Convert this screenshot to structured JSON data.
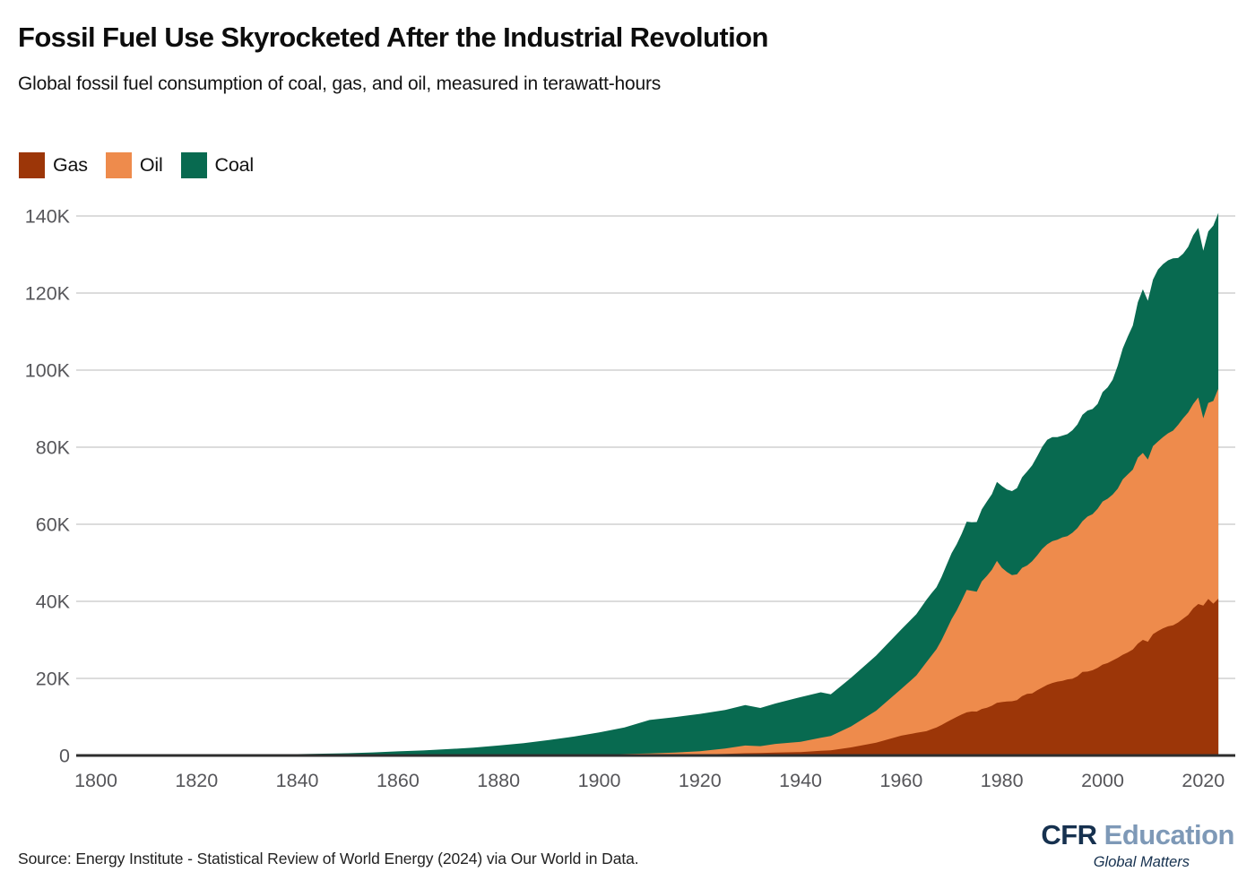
{
  "header": {
    "title": "Fossil Fuel Use Skyrocketed After the Industrial Revolution",
    "subtitle": "Global fossil fuel consumption of coal, gas, and oil, measured in terawatt-hours"
  },
  "footer": {
    "source": "Source: Energy Institute - Statistical Review of World Energy (2024) via Our World in Data.",
    "logo": {
      "cfr": "CFR",
      "education": "Education",
      "tagline": "Global Matters"
    }
  },
  "chart_data": {
    "type": "area",
    "stacked": true,
    "unit": "terawatt-hours",
    "title": "Fossil Fuel Use Skyrocketed After the Industrial Revolution",
    "subtitle": "Global fossil fuel consumption of coal, gas, and oil, measured in terawatt-hours",
    "xlabel": "",
    "ylabel": "",
    "x_range": [
      1800,
      2023
    ],
    "ylim": [
      0,
      140000
    ],
    "grid": true,
    "legend_position": "top-left",
    "series": [
      {
        "name": "Gas",
        "color": "#9c3608"
      },
      {
        "name": "Oil",
        "color": "#ee8b4c"
      },
      {
        "name": "Coal",
        "color": "#086a50"
      }
    ],
    "stack_order_bottom_to_top": [
      "Gas",
      "Oil",
      "Coal"
    ],
    "x_ticks": [
      1800,
      1820,
      1840,
      1860,
      1880,
      1900,
      1920,
      1940,
      1960,
      1980,
      2000,
      2020
    ],
    "y_ticks": [
      {
        "v": 0,
        "label": "0"
      },
      {
        "v": 20000,
        "label": "20K"
      },
      {
        "v": 40000,
        "label": "40K"
      },
      {
        "v": 60000,
        "label": "60K"
      },
      {
        "v": 80000,
        "label": "80K"
      },
      {
        "v": 100000,
        "label": "100K"
      },
      {
        "v": 120000,
        "label": "120K"
      },
      {
        "v": 140000,
        "label": "140K"
      }
    ],
    "points_format": [
      "year",
      "gas_twh",
      "oil_twh",
      "coal_twh"
    ],
    "points": [
      [
        1800,
        0,
        0,
        100
      ],
      [
        1810,
        0,
        0,
        130
      ],
      [
        1820,
        0,
        0,
        160
      ],
      [
        1830,
        0,
        0,
        260
      ],
      [
        1840,
        0,
        0,
        360
      ],
      [
        1850,
        0,
        0,
        570
      ],
      [
        1855,
        0,
        0,
        780
      ],
      [
        1860,
        0,
        0,
        1060
      ],
      [
        1865,
        0,
        10,
        1300
      ],
      [
        1870,
        0,
        10,
        1640
      ],
      [
        1875,
        10,
        20,
        2000
      ],
      [
        1880,
        20,
        30,
        2540
      ],
      [
        1885,
        50,
        60,
        3100
      ],
      [
        1890,
        70,
        90,
        3860
      ],
      [
        1895,
        70,
        130,
        4700
      ],
      [
        1900,
        60,
        180,
        5730
      ],
      [
        1905,
        100,
        270,
        6900
      ],
      [
        1910,
        140,
        400,
        8660
      ],
      [
        1915,
        180,
        570,
        9200
      ],
      [
        1920,
        230,
        890,
        9660
      ],
      [
        1925,
        400,
        1380,
        10000
      ],
      [
        1929,
        590,
        1990,
        10500
      ],
      [
        1932,
        620,
        1800,
        9900
      ],
      [
        1935,
        740,
        2260,
        10500
      ],
      [
        1940,
        880,
        2660,
        11590
      ],
      [
        1944,
        1200,
        3400,
        11800
      ],
      [
        1946,
        1350,
        3700,
        10800
      ],
      [
        1950,
        2090,
        5440,
        12600
      ],
      [
        1955,
        3300,
        8300,
        14300
      ],
      [
        1960,
        5150,
        12110,
        15440
      ],
      [
        1963,
        5850,
        14900,
        15900
      ],
      [
        1965,
        6300,
        17900,
        16200
      ],
      [
        1966,
        6800,
        19100,
        16200
      ],
      [
        1967,
        7280,
        20300,
        16100
      ],
      [
        1968,
        7900,
        22000,
        16400
      ],
      [
        1969,
        8620,
        24000,
        16800
      ],
      [
        1970,
        9330,
        26100,
        17100
      ],
      [
        1971,
        10000,
        27600,
        17200
      ],
      [
        1972,
        10640,
        29600,
        17300
      ],
      [
        1973,
        11180,
        31800,
        17700
      ],
      [
        1974,
        11410,
        31300,
        17800
      ],
      [
        1975,
        11390,
        31100,
        18100
      ],
      [
        1976,
        12060,
        33100,
        18700
      ],
      [
        1977,
        12400,
        34200,
        19300
      ],
      [
        1978,
        12910,
        35300,
        19600
      ],
      [
        1979,
        13650,
        36850,
        20500
      ],
      [
        1980,
        13870,
        34830,
        21200
      ],
      [
        1981,
        14030,
        33570,
        21400
      ],
      [
        1982,
        14060,
        32740,
        21800
      ],
      [
        1983,
        14380,
        32620,
        22400
      ],
      [
        1984,
        15390,
        33310,
        23500
      ],
      [
        1985,
        15980,
        33320,
        24400
      ],
      [
        1986,
        16090,
        34310,
        24900
      ],
      [
        1987,
        16920,
        34980,
        25700
      ],
      [
        1988,
        17620,
        35980,
        26500
      ],
      [
        1989,
        18310,
        36490,
        27100
      ],
      [
        1990,
        18820,
        36780,
        27000
      ],
      [
        1991,
        19170,
        36830,
        26600
      ],
      [
        1992,
        19340,
        37260,
        26400
      ],
      [
        1993,
        19750,
        37150,
        26500
      ],
      [
        1994,
        19910,
        37890,
        26600
      ],
      [
        1995,
        20560,
        38440,
        26900
      ],
      [
        1996,
        21690,
        39110,
        27600
      ],
      [
        1997,
        21770,
        40230,
        27500
      ],
      [
        1998,
        22110,
        40490,
        27300
      ],
      [
        1999,
        22730,
        41270,
        27200
      ],
      [
        2000,
        23570,
        42330,
        28400
      ],
      [
        2001,
        23970,
        42650,
        28900
      ],
      [
        2002,
        24650,
        43050,
        29800
      ],
      [
        2003,
        25330,
        43870,
        31900
      ],
      [
        2004,
        26130,
        45510,
        34000
      ],
      [
        2005,
        26750,
        46170,
        35800
      ],
      [
        2006,
        27500,
        46680,
        37400
      ],
      [
        2007,
        29000,
        48300,
        40300
      ],
      [
        2008,
        30000,
        48500,
        42500
      ],
      [
        2009,
        29500,
        47300,
        41200
      ],
      [
        2010,
        31500,
        48800,
        43200
      ],
      [
        2011,
        32300,
        49200,
        44600
      ],
      [
        2012,
        33000,
        49600,
        44900
      ],
      [
        2013,
        33500,
        50100,
        44900
      ],
      [
        2014,
        33800,
        50500,
        44700
      ],
      [
        2015,
        34500,
        51300,
        43300
      ],
      [
        2016,
        35500,
        52000,
        42700
      ],
      [
        2017,
        36500,
        52500,
        43000
      ],
      [
        2018,
        38200,
        53000,
        43800
      ],
      [
        2019,
        39300,
        53600,
        44000
      ],
      [
        2020,
        38900,
        48600,
        43500
      ],
      [
        2021,
        40600,
        50900,
        44500
      ],
      [
        2022,
        39400,
        52600,
        45500
      ],
      [
        2023,
        40700,
        54500,
        45600
      ]
    ],
    "style": {
      "grid_color": "#dcdcdc",
      "axis_line_color": "#2e2e2e",
      "tick_label_color": "#56565a"
    }
  }
}
